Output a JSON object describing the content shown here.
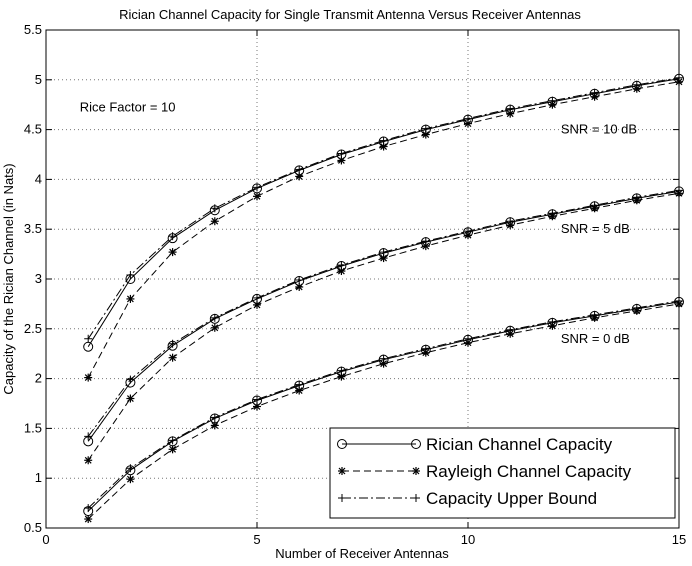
{
  "chart_data": {
    "type": "line",
    "title": "Rician Channel Capacity for Single Transmit Antenna Versus Receiver Antennas",
    "xlabel": "Number of Receiver Antennas",
    "ylabel": "Capacity of the Rician Channel (in Nats)",
    "xlim": [
      0,
      15
    ],
    "ylim": [
      0.5,
      5.5
    ],
    "xticks": [
      0,
      5,
      10,
      15
    ],
    "yticks": [
      0.5,
      1,
      1.5,
      2,
      2.5,
      3,
      3.5,
      4,
      4.5,
      5,
      5.5
    ],
    "grid": true,
    "legend_position": "bottom-right",
    "annotations": [
      {
        "text": "Rice Factor = 10",
        "x": 0.8,
        "y": 4.72
      },
      {
        "text": "SNR = 10 dB",
        "x": 12.2,
        "y": 4.5
      },
      {
        "text": "SNR = 5 dB",
        "x": 12.2,
        "y": 3.5
      },
      {
        "text": "SNR = 0 dB",
        "x": 12.2,
        "y": 2.4
      }
    ],
    "x": [
      1,
      2,
      3,
      4,
      5,
      6,
      7,
      8,
      9,
      10,
      11,
      12,
      13,
      14,
      15
    ],
    "series": [
      {
        "name": "Rician Channel Capacity",
        "group": "SNR = 10 dB",
        "style": "rician",
        "values": [
          2.32,
          3.0,
          3.41,
          3.69,
          3.91,
          4.09,
          4.25,
          4.38,
          4.5,
          4.6,
          4.7,
          4.78,
          4.86,
          4.94,
          5.01
        ]
      },
      {
        "name": "Rayleigh Channel Capacity",
        "group": "SNR = 10 dB",
        "style": "rayleigh",
        "values": [
          2.01,
          2.8,
          3.27,
          3.58,
          3.83,
          4.03,
          4.19,
          4.33,
          4.45,
          4.56,
          4.66,
          4.75,
          4.83,
          4.91,
          4.98
        ]
      },
      {
        "name": "Capacity Upper Bound",
        "group": "SNR = 10 dB",
        "style": "bound",
        "values": [
          2.4,
          3.04,
          3.43,
          3.71,
          3.92,
          4.1,
          4.26,
          4.39,
          4.51,
          4.61,
          4.71,
          4.79,
          4.87,
          4.95,
          5.02
        ]
      },
      {
        "name": "Rician Channel Capacity",
        "group": "SNR = 5 dB",
        "style": "rician",
        "values": [
          1.37,
          1.96,
          2.33,
          2.6,
          2.8,
          2.98,
          3.13,
          3.26,
          3.37,
          3.47,
          3.57,
          3.65,
          3.73,
          3.81,
          3.88
        ]
      },
      {
        "name": "Rayleigh Channel Capacity",
        "group": "SNR = 5 dB",
        "style": "rayleigh",
        "values": [
          1.18,
          1.8,
          2.21,
          2.51,
          2.74,
          2.92,
          3.08,
          3.21,
          3.33,
          3.44,
          3.54,
          3.63,
          3.71,
          3.79,
          3.86
        ]
      },
      {
        "name": "Capacity Upper Bound",
        "group": "SNR = 5 dB",
        "style": "bound",
        "values": [
          1.42,
          1.99,
          2.35,
          2.61,
          2.81,
          2.99,
          3.14,
          3.27,
          3.38,
          3.48,
          3.58,
          3.66,
          3.74,
          3.82,
          3.89
        ]
      },
      {
        "name": "Rician Channel Capacity",
        "group": "SNR = 0 dB",
        "style": "rician",
        "values": [
          0.67,
          1.08,
          1.37,
          1.6,
          1.78,
          1.93,
          2.07,
          2.19,
          2.29,
          2.39,
          2.48,
          2.56,
          2.63,
          2.7,
          2.77
        ]
      },
      {
        "name": "Rayleigh Channel Capacity",
        "group": "SNR = 0 dB",
        "style": "rayleigh",
        "values": [
          0.59,
          0.99,
          1.29,
          1.53,
          1.72,
          1.88,
          2.02,
          2.15,
          2.26,
          2.36,
          2.45,
          2.53,
          2.61,
          2.68,
          2.75
        ]
      },
      {
        "name": "Capacity Upper Bound",
        "group": "SNR = 0 dB",
        "style": "bound",
        "values": [
          0.7,
          1.1,
          1.38,
          1.61,
          1.79,
          1.94,
          2.08,
          2.2,
          2.3,
          2.4,
          2.49,
          2.57,
          2.64,
          2.71,
          2.78
        ]
      }
    ],
    "legend": [
      {
        "label": "Rician Channel Capacity",
        "style": "rician"
      },
      {
        "label": "Rayleigh Channel Capacity",
        "style": "rayleigh"
      },
      {
        "label": "Capacity Upper Bound",
        "style": "bound"
      }
    ]
  }
}
